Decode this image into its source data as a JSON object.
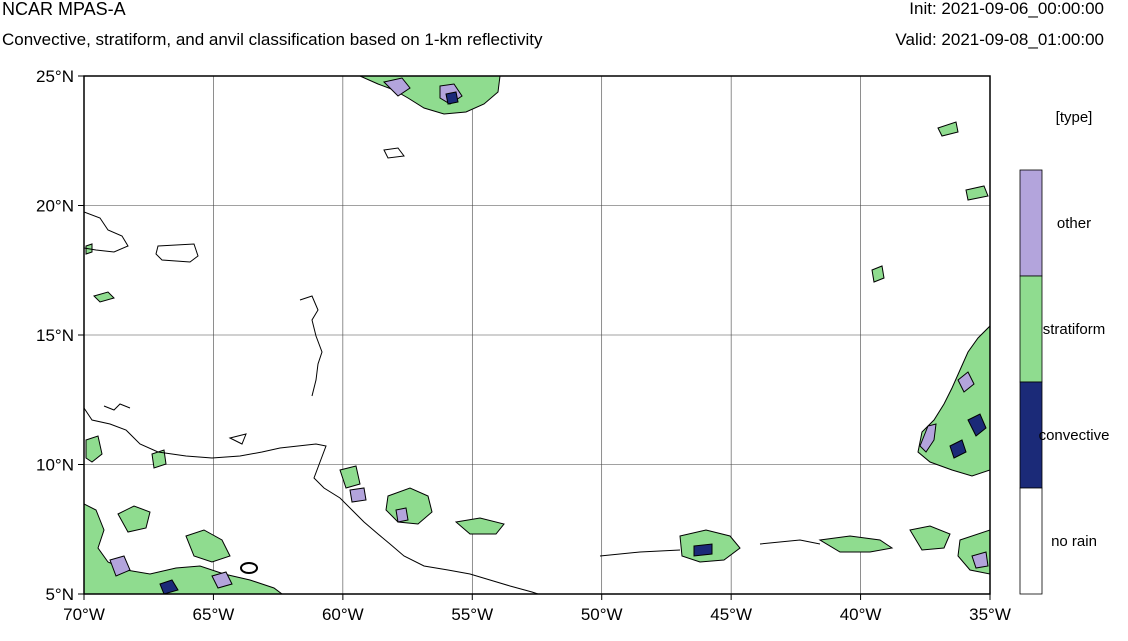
{
  "header": {
    "title": "NCAR MPAS-A",
    "subtitle": "Convective, stratiform, and anvil classification based on 1-km reflectivity",
    "init": "Init: 2021-09-06_00:00:00",
    "valid": "Valid: 2021-09-08_01:00:00"
  },
  "map": {
    "lon_range": [
      -70,
      -35
    ],
    "lat_range": [
      5,
      25
    ],
    "grid": true,
    "lon_ticks": [
      {
        "value": -70,
        "label": "70°W"
      },
      {
        "value": -65,
        "label": "65°W"
      },
      {
        "value": -60,
        "label": "60°W"
      },
      {
        "value": -55,
        "label": "55°W"
      },
      {
        "value": -50,
        "label": "50°W"
      },
      {
        "value": -45,
        "label": "45°W"
      },
      {
        "value": -40,
        "label": "40°W"
      },
      {
        "value": -35,
        "label": "35°W"
      }
    ],
    "lat_ticks": [
      {
        "value": 25,
        "label": "25°N"
      },
      {
        "value": 20,
        "label": "20°N"
      },
      {
        "value": 15,
        "label": "15°N"
      },
      {
        "value": 10,
        "label": "10°N"
      },
      {
        "value": 5,
        "label": "5°N"
      }
    ]
  },
  "legend": {
    "title": "[type]",
    "entries": [
      {
        "label": "other",
        "color": "#b3a4dc"
      },
      {
        "label": "stratiform",
        "color": "#8fdc8f"
      },
      {
        "label": "convective",
        "color": "#1b2a78"
      },
      {
        "label": "no rain",
        "color": "#ffffff"
      }
    ]
  },
  "colors": {
    "other": "#b3a4dc",
    "stratiform": "#8fdc8f",
    "convective": "#1b2a78",
    "no_rain": "#ffffff",
    "outline": "#000000"
  }
}
